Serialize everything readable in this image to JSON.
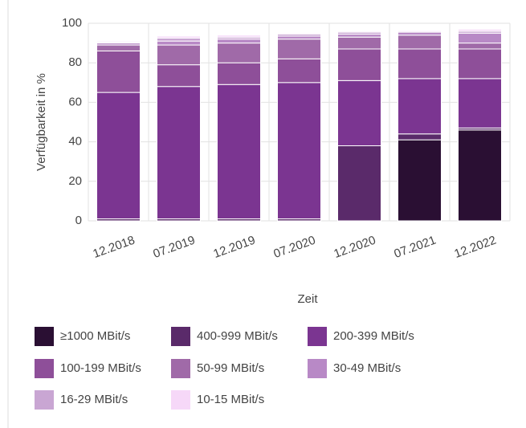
{
  "chart_data": {
    "type": "stacked_bar",
    "y_label": "Verfügbarkeit in %",
    "x_label": "Zeit",
    "categories": [
      "12.2018",
      "07.2019",
      "12.2019",
      "07.2020",
      "12.2020",
      "07.2021",
      "12.2022"
    ],
    "ylim": [
      0,
      100
    ],
    "yticks": [
      0,
      20,
      40,
      60,
      80,
      100
    ],
    "grid": true,
    "series": [
      {
        "name": "≥1000 MBit/s",
        "color": "#2a0f33",
        "values": [
          0,
          0,
          0,
          0,
          0,
          41,
          46
        ]
      },
      {
        "name": "400-999 MBit/s",
        "color": "#5a2a6a",
        "values": [
          1,
          1,
          1,
          1,
          38,
          3,
          1
        ]
      },
      {
        "name": "200-399 MBit/s",
        "color": "#7b3591",
        "values": [
          64,
          67,
          68,
          69,
          33,
          28,
          25
        ]
      },
      {
        "name": "100-199 MBit/s",
        "color": "#8e4f99",
        "values": [
          21,
          11,
          11,
          12,
          16,
          15,
          15
        ]
      },
      {
        "name": "50-99 MBit/s",
        "color": "#a06aa8",
        "values": [
          3,
          10,
          10,
          10,
          6,
          7,
          3
        ]
      },
      {
        "name": "30-49 MBit/s",
        "color": "#b889c6",
        "values": [
          1,
          2,
          2,
          1.5,
          1.5,
          1.5,
          5
        ]
      },
      {
        "name": "16-29 MBit/s",
        "color": "#c9a6d3",
        "values": [
          0.5,
          1.5,
          1,
          1,
          1,
          0.5,
          1
        ]
      },
      {
        "name": "10-15 MBit/s",
        "color": "#f6d8f8",
        "values": [
          0.5,
          1,
          1,
          0.5,
          0.5,
          0.5,
          1
        ]
      }
    ]
  }
}
